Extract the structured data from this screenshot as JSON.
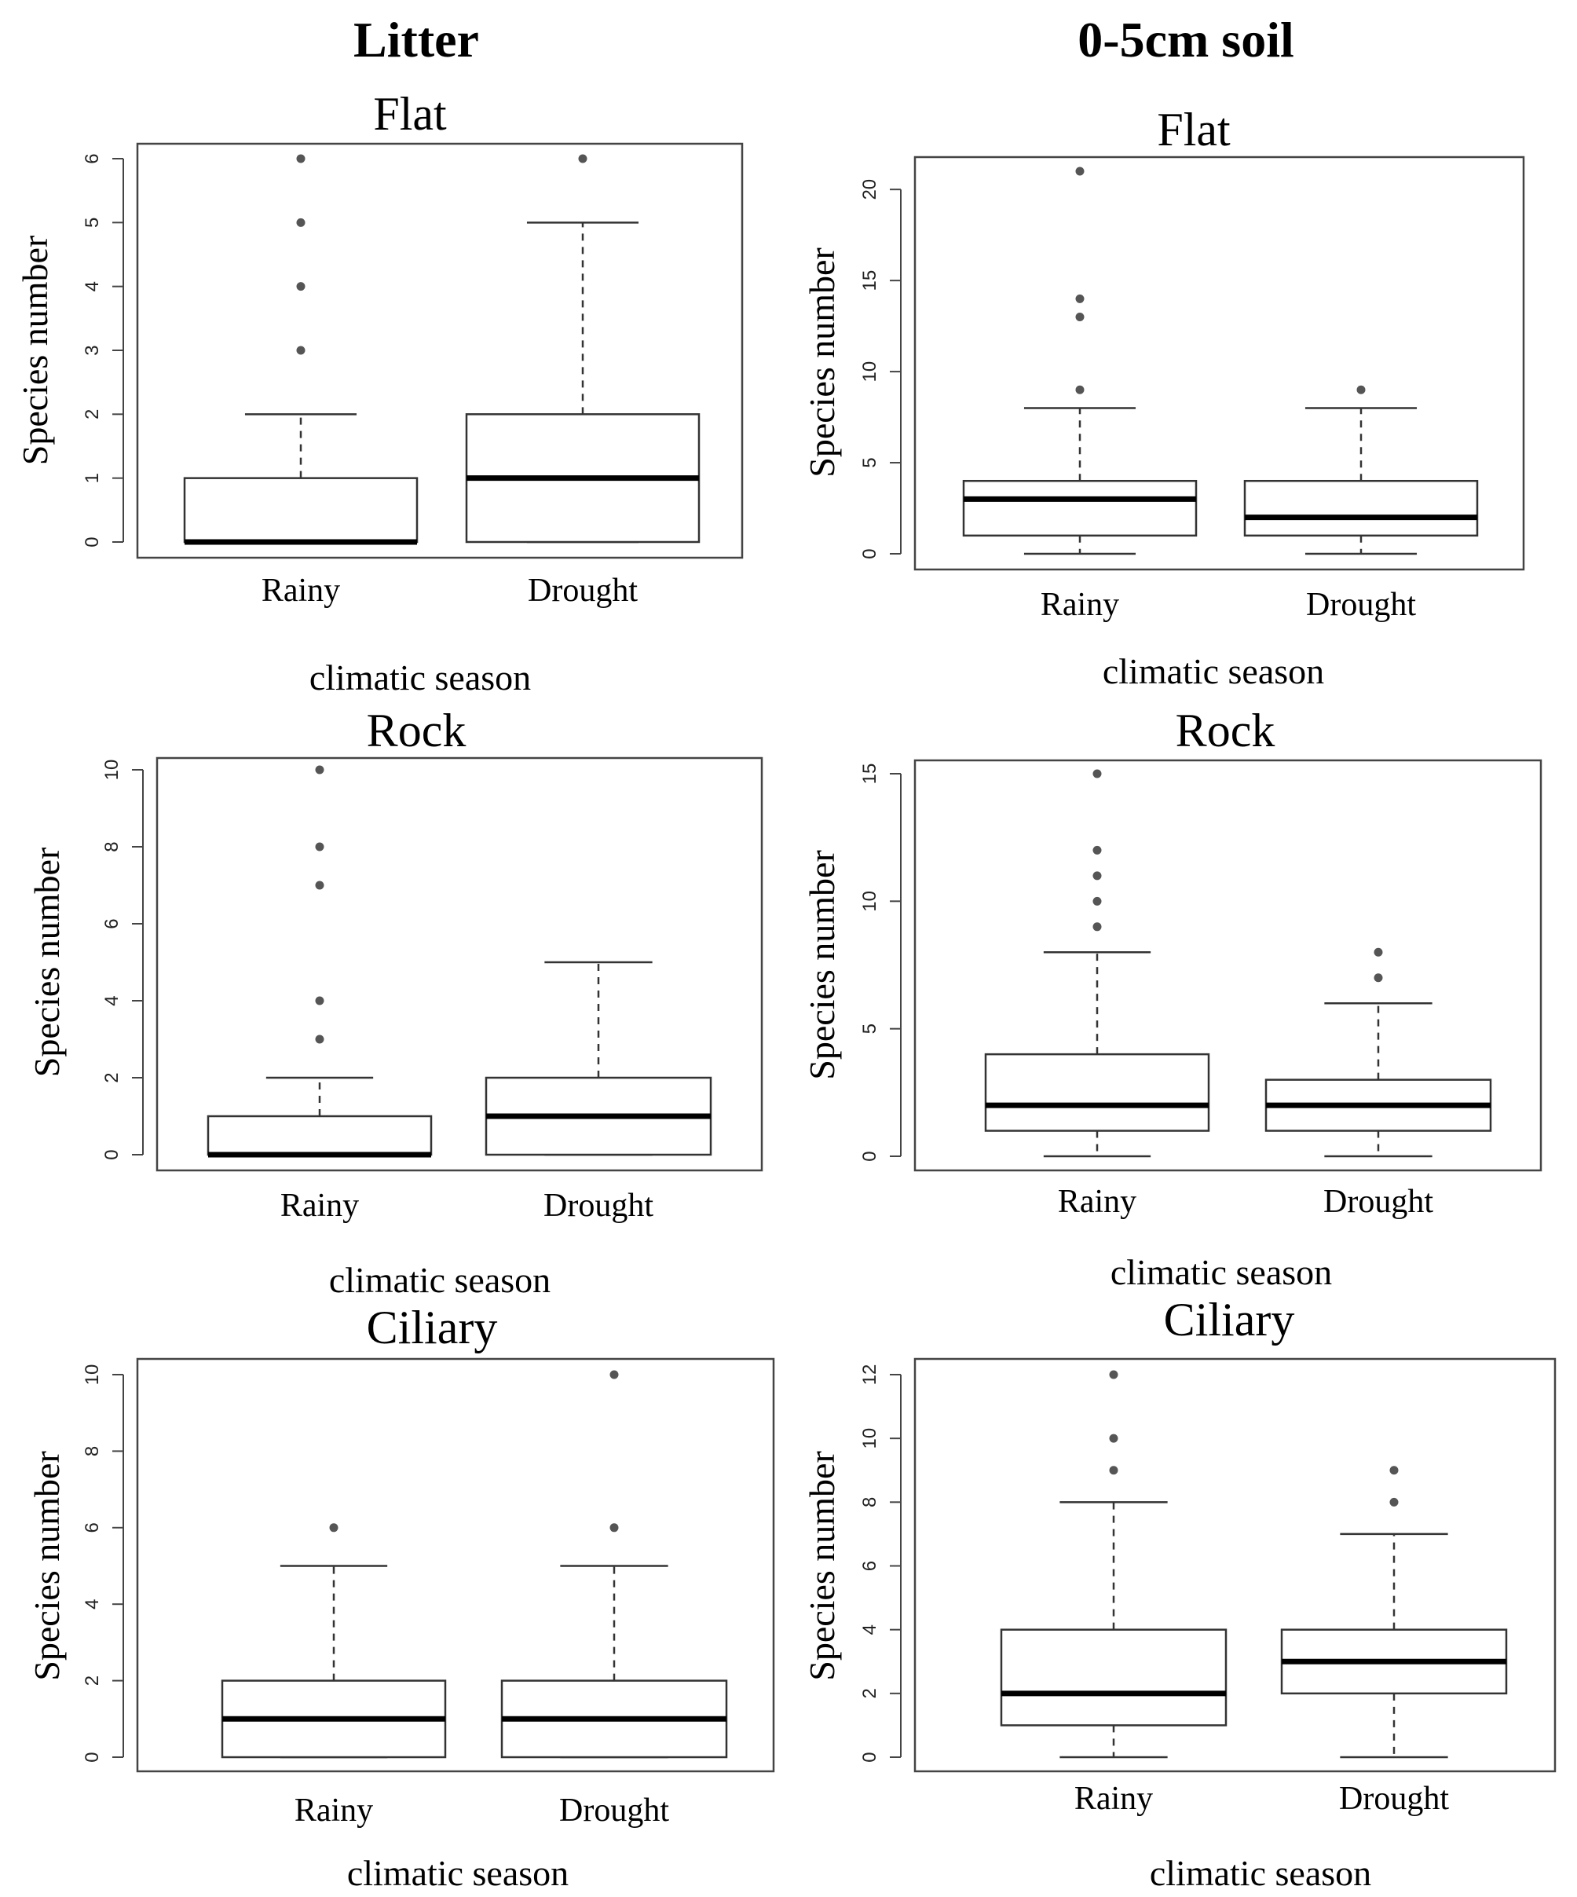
{
  "column_titles": [
    "Litter",
    "0-5cm soil"
  ],
  "chart_data": [
    {
      "type": "boxplot",
      "column": "Litter",
      "title": "Flat",
      "xlabel": "climatic  season",
      "ylabel": "Species number",
      "ylim": [
        0,
        6
      ],
      "yticks": [
        0,
        1,
        2,
        3,
        4,
        5,
        6
      ],
      "categories": [
        "Rainy",
        "Drought"
      ],
      "boxes": [
        {
          "category": "Rainy",
          "min": 0,
          "q1": 0,
          "median": 0,
          "q3": 1,
          "max": 2,
          "outliers": [
            3,
            4,
            5,
            6
          ]
        },
        {
          "category": "Drought",
          "min": 0,
          "q1": 0,
          "median": 1,
          "q3": 2,
          "max": 5,
          "outliers": [
            6
          ]
        }
      ]
    },
    {
      "type": "boxplot",
      "column": "0-5cm soil",
      "title": "Flat",
      "xlabel": "climatic  season",
      "ylabel": "Species number",
      "ylim": [
        0,
        21
      ],
      "yticks": [
        0,
        5,
        10,
        15,
        20
      ],
      "categories": [
        "Rainy",
        "Drought"
      ],
      "boxes": [
        {
          "category": "Rainy",
          "min": 0,
          "q1": 1,
          "median": 3,
          "q3": 4,
          "max": 8,
          "outliers": [
            9,
            13,
            14,
            21
          ]
        },
        {
          "category": "Drought",
          "min": 0,
          "q1": 1,
          "median": 2,
          "q3": 4,
          "max": 8,
          "outliers": [
            9
          ]
        }
      ]
    },
    {
      "type": "boxplot",
      "column": "Litter",
      "title": "Rock",
      "xlabel": "climatic  season",
      "ylabel": "Species number",
      "ylim": [
        0,
        10
      ],
      "yticks": [
        0,
        2,
        4,
        6,
        8,
        10
      ],
      "categories": [
        "Rainy",
        "Drought"
      ],
      "boxes": [
        {
          "category": "Rainy",
          "min": 0,
          "q1": 0,
          "median": 0,
          "q3": 1,
          "max": 2,
          "outliers": [
            3,
            4,
            7,
            8,
            10
          ]
        },
        {
          "category": "Drought",
          "min": 0,
          "q1": 0,
          "median": 1,
          "q3": 2,
          "max": 5,
          "outliers": []
        }
      ]
    },
    {
      "type": "boxplot",
      "column": "0-5cm soil",
      "title": "Rock",
      "xlabel": "climatic  season",
      "ylabel": "Species number",
      "ylim": [
        0,
        15
      ],
      "yticks": [
        0,
        5,
        10,
        15
      ],
      "categories": [
        "Rainy",
        "Drought"
      ],
      "boxes": [
        {
          "category": "Rainy",
          "min": 0,
          "q1": 1,
          "median": 2,
          "q3": 4,
          "max": 8,
          "outliers": [
            9,
            10,
            11,
            12,
            15
          ]
        },
        {
          "category": "Drought",
          "min": 0,
          "q1": 1,
          "median": 2,
          "q3": 3,
          "max": 6,
          "outliers": [
            7,
            8
          ]
        }
      ]
    },
    {
      "type": "boxplot",
      "column": "Litter",
      "title": "Ciliary",
      "xlabel": "climatic  season",
      "ylabel": "Species number",
      "ylim": [
        0,
        10
      ],
      "yticks": [
        0,
        2,
        4,
        6,
        8,
        10
      ],
      "categories": [
        "Rainy",
        "Drought"
      ],
      "boxes": [
        {
          "category": "Rainy",
          "min": 0,
          "q1": 0,
          "median": 1,
          "q3": 2,
          "max": 5,
          "outliers": [
            6
          ]
        },
        {
          "category": "Drought",
          "min": 0,
          "q1": 0,
          "median": 1,
          "q3": 2,
          "max": 5,
          "outliers": [
            6,
            10
          ]
        }
      ]
    },
    {
      "type": "boxplot",
      "column": "0-5cm soil",
      "title": "Ciliary",
      "xlabel": "climatic  season",
      "ylabel": "Species number",
      "ylim": [
        0,
        12
      ],
      "yticks": [
        0,
        2,
        4,
        6,
        8,
        10,
        12
      ],
      "categories": [
        "Rainy",
        "Drought"
      ],
      "boxes": [
        {
          "category": "Rainy",
          "min": 0,
          "q1": 1,
          "median": 2,
          "q3": 4,
          "max": 8,
          "outliers": [
            9,
            10,
            12
          ]
        },
        {
          "category": "Drought",
          "min": 0,
          "q1": 2,
          "median": 3,
          "q3": 4,
          "max": 7,
          "outliers": [
            8,
            9
          ]
        }
      ]
    }
  ]
}
